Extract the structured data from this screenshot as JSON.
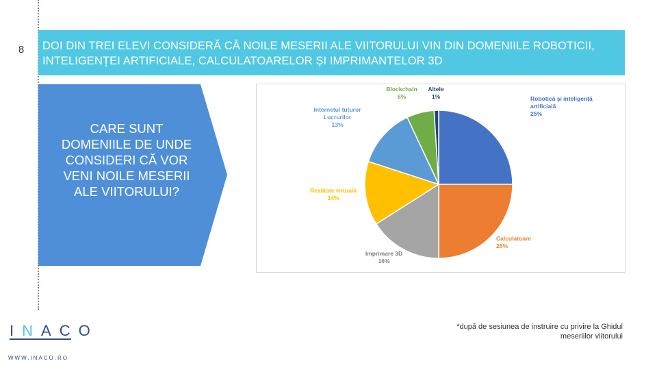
{
  "slide": {
    "page_number": "8",
    "title": "DOI DIN TREI ELEVI CONSIDERĂ CĂ NOILE MESERII ALE VIITORULUI VIN DIN DOMENIILE ROBOTICII, INTELIGENȚEI ARTIFICIALE, CALCULATOARELOR ȘI IMPRIMANTELOR 3D",
    "question": "CARE SUNT DOMENIILE DE UNDE CONSIDERI CĂ VOR VENI NOILE MESERII ALE VIITORULUI?",
    "footnote": "*după de sesiunea de instruire cu privire la Ghidul meseriilor viitorului",
    "website": "WWW.INACO.RO",
    "logo_text": "INACO",
    "colors": {
      "banner": "#50c8e3",
      "arrow": "#4f8fd8",
      "brand": "#2d4d8f"
    }
  },
  "chart_data": {
    "type": "pie",
    "title": "",
    "series": [
      {
        "name": "Robotică și inteligență artificială",
        "value": 25,
        "label": "25%",
        "color": "#4472c4",
        "text_color": "#4472c4"
      },
      {
        "name": "Calculatoare",
        "value": 25,
        "label": "25%",
        "color": "#ed7d31",
        "text_color": "#ed7d31"
      },
      {
        "name": "Imprimare 3D",
        "value": 16,
        "label": "16%",
        "color": "#a5a5a5",
        "text_color": "#7f7f7f"
      },
      {
        "name": "Realitate virtuală",
        "value": 14,
        "label": "14%",
        "color": "#ffc000",
        "text_color": "#ffc000"
      },
      {
        "name": "Internetul tuturor Lucrurilor",
        "value": 13,
        "label": "13%",
        "color": "#5b9bd5",
        "text_color": "#5b9bd5"
      },
      {
        "name": "Blockchain",
        "value": 6,
        "label": "6%",
        "color": "#70ad47",
        "text_color": "#70ad47"
      },
      {
        "name": "Altele",
        "value": 1,
        "label": "1%",
        "color": "#264478",
        "text_color": "#264478"
      }
    ]
  }
}
